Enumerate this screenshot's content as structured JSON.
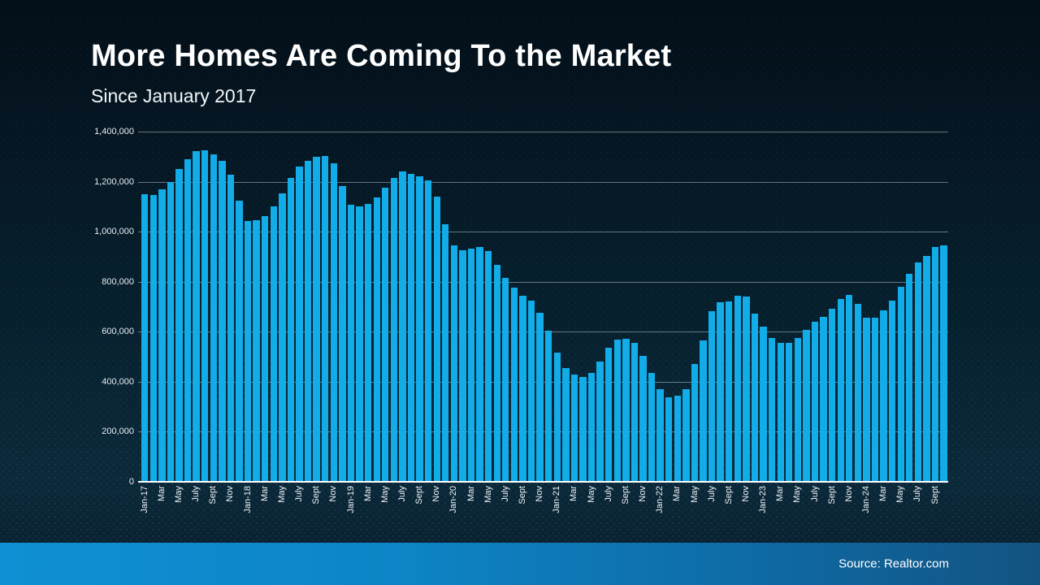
{
  "header": {
    "title": "More Homes Are Coming To the Market",
    "subtitle": "Since January 2017"
  },
  "footer": {
    "source": "Source: Realtor.com"
  },
  "colors": {
    "bar": "#12ace8",
    "background_top": "#030e17",
    "background_bottom": "#0b2939",
    "band_left": "#0f90d4",
    "band_right": "#135381",
    "gridline": "#a4b2bd",
    "baseline": "#ffffff",
    "text": "#ffffff"
  },
  "chart_data": {
    "type": "bar",
    "title": "More Homes Are Coming To the Market",
    "subtitle": "Since January 2017",
    "ylabel": "",
    "xlabel": "",
    "ylim": [
      0,
      1400000
    ],
    "grid": true,
    "legend": null,
    "y_ticks": [
      {
        "label": "1,400,000",
        "value": 1400000
      },
      {
        "label": "1,200,000",
        "value": 1200000
      },
      {
        "label": "1,000,000",
        "value": 1000000
      },
      {
        "label": "800,000",
        "value": 800000
      },
      {
        "label": "600,000",
        "value": 600000
      },
      {
        "label": "400,000",
        "value": 400000
      },
      {
        "label": "200,000",
        "value": 200000
      },
      {
        "label": "0",
        "value": 0
      }
    ],
    "x": [
      "Jan-17",
      "Feb-17",
      "Mar-17",
      "Apr-17",
      "May-17",
      "Jun-17",
      "Jul-17",
      "Aug-17",
      "Sep-17",
      "Oct-17",
      "Nov-17",
      "Dec-17",
      "Jan-18",
      "Feb-18",
      "Mar-18",
      "Apr-18",
      "May-18",
      "Jun-18",
      "Jul-18",
      "Aug-18",
      "Sep-18",
      "Oct-18",
      "Nov-18",
      "Dec-18",
      "Jan-19",
      "Feb-19",
      "Mar-19",
      "Apr-19",
      "May-19",
      "Jun-19",
      "Jul-19",
      "Aug-19",
      "Sep-19",
      "Oct-19",
      "Nov-19",
      "Dec-19",
      "Jan-20",
      "Feb-20",
      "Mar-20",
      "Apr-20",
      "May-20",
      "Jun-20",
      "Jul-20",
      "Aug-20",
      "Sep-20",
      "Oct-20",
      "Nov-20",
      "Dec-20",
      "Jan-21",
      "Feb-21",
      "Mar-21",
      "Apr-21",
      "May-21",
      "Jun-21",
      "Jul-21",
      "Aug-21",
      "Sep-21",
      "Oct-21",
      "Nov-21",
      "Dec-21",
      "Jan-22",
      "Feb-22",
      "Mar-22",
      "Apr-22",
      "May-22",
      "Jun-22",
      "Jul-22",
      "Aug-22",
      "Sep-22",
      "Oct-22",
      "Nov-22",
      "Dec-22",
      "Jan-23",
      "Feb-23",
      "Mar-23",
      "Apr-23",
      "May-23",
      "Jun-23",
      "Jul-23",
      "Aug-23",
      "Sep-23",
      "Oct-23",
      "Nov-23",
      "Dec-23",
      "Jan-24",
      "Feb-24",
      "Mar-24",
      "Apr-24",
      "May-24",
      "Jun-24",
      "Jul-24",
      "Aug-24",
      "Sep-24",
      "Oct-24"
    ],
    "x_tick_labels": [
      "Jan-17",
      "",
      "Mar",
      "",
      "May",
      "",
      "July",
      "",
      "Sept",
      "",
      "Nov",
      "",
      "Jan-18",
      "",
      "Mar",
      "",
      "May",
      "",
      "July",
      "",
      "Sept",
      "",
      "Nov",
      "",
      "Jan-19",
      "",
      "Mar",
      "",
      "May",
      "",
      "July",
      "",
      "Sept",
      "",
      "Nov",
      "",
      "Jan-20",
      "",
      "Mar",
      "",
      "May",
      "",
      "July",
      "",
      "Sept",
      "",
      "Nov",
      "",
      "Jan-21",
      "",
      "Mar",
      "",
      "May",
      "",
      "July",
      "",
      "Sept",
      "",
      "Nov",
      "",
      "Jan-22",
      "",
      "Mar",
      "",
      "May",
      "",
      "July",
      "",
      "Sept",
      "",
      "Nov",
      "",
      "Jan-23",
      "",
      "Mar",
      "",
      "May",
      "",
      "July",
      "",
      "Sept",
      "",
      "Nov",
      "",
      "Jan-24",
      "",
      "Mar",
      "",
      "May",
      "",
      "July",
      "",
      "Sept",
      ""
    ],
    "values": [
      1150000,
      1148000,
      1170000,
      1198000,
      1250000,
      1291000,
      1321000,
      1325000,
      1308000,
      1283000,
      1228000,
      1125000,
      1044000,
      1046000,
      1062000,
      1100000,
      1153000,
      1214000,
      1261000,
      1284000,
      1300000,
      1303000,
      1272000,
      1181000,
      1109000,
      1102000,
      1111000,
      1138000,
      1175000,
      1214000,
      1240000,
      1232000,
      1221000,
      1206000,
      1140000,
      1031000,
      946000,
      926000,
      931000,
      940000,
      923000,
      867000,
      815000,
      775000,
      745000,
      725000,
      677000,
      603000,
      518000,
      456000,
      428000,
      419000,
      437000,
      480000,
      535000,
      568000,
      571000,
      557000,
      503000,
      434000,
      369000,
      337000,
      344000,
      372000,
      471000,
      566000,
      682000,
      718000,
      722000,
      743000,
      740000,
      673000,
      620000,
      574000,
      557000,
      555000,
      574000,
      607000,
      641000,
      660000,
      693000,
      731000,
      748000,
      711000,
      657000,
      657000,
      687000,
      725000,
      780000,
      831000,
      877000,
      903000,
      938000,
      947000
    ]
  }
}
